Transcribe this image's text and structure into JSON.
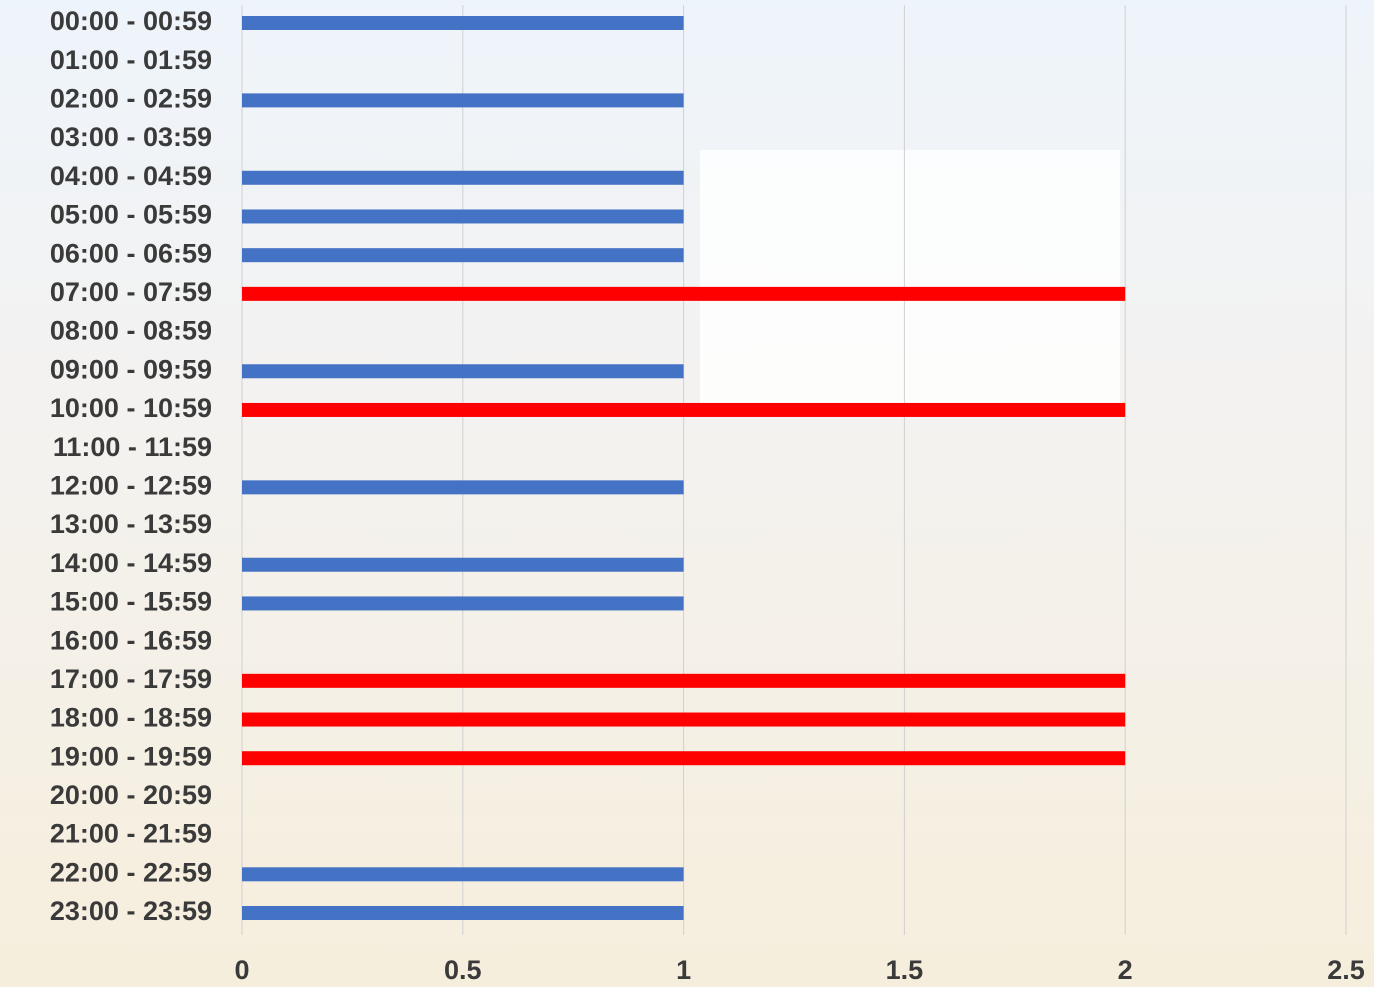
{
  "chart_data": {
    "type": "barh",
    "categories": [
      "00:00 - 00:59",
      "01:00 - 01:59",
      "02:00 - 02:59",
      "03:00 - 03:59",
      "04:00 - 04:59",
      "05:00 - 05:59",
      "06:00 - 06:59",
      "07:00 - 07:59",
      "08:00 - 08:59",
      "09:00 - 09:59",
      "10:00 - 10:59",
      "11:00 - 11:59",
      "12:00 - 12:59",
      "13:00 - 13:59",
      "14:00 - 14:59",
      "15:00 - 15:59",
      "16:00 - 16:59",
      "17:00 - 17:59",
      "18:00 - 18:59",
      "19:00 - 19:59",
      "20:00 - 20:59",
      "21:00 - 21:59",
      "22:00 - 22:59",
      "23:00 - 23:59"
    ],
    "values": [
      1,
      0,
      1,
      0,
      1,
      1,
      1,
      2,
      0,
      1,
      2,
      0,
      1,
      0,
      1,
      1,
      0,
      2,
      2,
      2,
      0,
      0,
      1,
      1
    ],
    "colors": [
      "#4472c4",
      "#4472c4",
      "#4472c4",
      "#4472c4",
      "#4472c4",
      "#4472c4",
      "#4472c4",
      "#ff0000",
      "#4472c4",
      "#4472c4",
      "#ff0000",
      "#4472c4",
      "#4472c4",
      "#4472c4",
      "#4472c4",
      "#4472c4",
      "#4472c4",
      "#ff0000",
      "#ff0000",
      "#ff0000",
      "#4472c4",
      "#4472c4",
      "#4472c4",
      "#4472c4"
    ],
    "xlim": [
      0,
      2.5
    ],
    "xticks": [
      0,
      0.5,
      1,
      1.5,
      2,
      2.5
    ],
    "grid": true
  }
}
